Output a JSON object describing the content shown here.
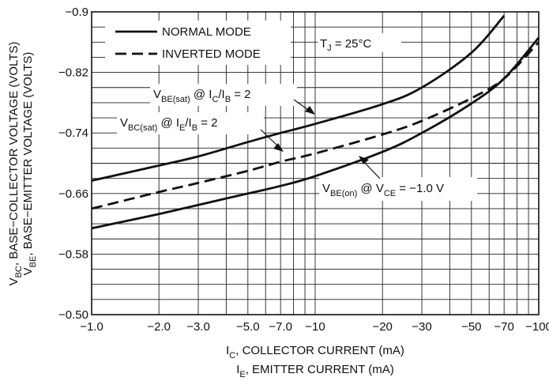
{
  "chart_data": {
    "type": "line",
    "x_scale": "log",
    "x_tick_labels": [
      "−1.0",
      "−2.0",
      "−3.0",
      "−5.0",
      "−7.0",
      "−10",
      "−20",
      "−30",
      "−50",
      "−70",
      "−100"
    ],
    "x_tick_values": [
      1,
      2,
      3,
      5,
      7,
      10,
      20,
      30,
      50,
      70,
      100
    ],
    "xlim": [
      1,
      100
    ],
    "xlabel_line1_main": "I",
    "xlabel_line1_sub": "C",
    "xlabel_line1_rest": ", COLLECTOR CURRENT (mA)",
    "xlabel_line2_main": "I",
    "xlabel_line2_sub": "E",
    "xlabel_line2_rest": ", EMITTER CURRENT (mA)",
    "y_tick_labels": [
      "−0.9",
      "−0.82",
      "−0.74",
      "−0.66",
      "−0.58",
      "−0.50"
    ],
    "y_tick_values": [
      0.9,
      0.82,
      0.74,
      0.66,
      0.58,
      0.5
    ],
    "ylim": [
      0.5,
      0.9
    ],
    "ylabel_line1_main": "V",
    "ylabel_line1_sub": "BC",
    "ylabel_line1_rest": ", BASE−COLLECTOR VOLTAGE (VOLTS)",
    "ylabel_line2_main": "V",
    "ylabel_line2_sub": "BE",
    "ylabel_line2_rest": ", BASE−EMITTER VOLTAGE (VOLTS)",
    "grid": true,
    "legend": [
      {
        "label": "NORMAL MODE",
        "style": "solid"
      },
      {
        "label": "INVERTED MODE",
        "style": "dashed"
      }
    ],
    "condition": {
      "main": "T",
      "sub": "J",
      "rest": " = 25°C"
    },
    "series": [
      {
        "style": "solid",
        "annotation": {
          "p1": "V",
          "p1sub": "BE(sat)",
          "p2": " @ I",
          "p2sub": "C",
          "p3": "/I",
          "p3sub": "B",
          "p4": " = 2"
        },
        "x": [
          1,
          2,
          3,
          5,
          7,
          10,
          20,
          30,
          50,
          70
        ],
        "y": [
          0.677,
          0.697,
          0.709,
          0.728,
          0.74,
          0.752,
          0.778,
          0.8,
          0.846,
          0.895
        ]
      },
      {
        "style": "dashed",
        "annotation": {
          "p1": "V",
          "p1sub": "BC(sat)",
          "p2": " @ I",
          "p2sub": "E",
          "p3": "/I",
          "p3sub": "B",
          "p4": " = 2"
        },
        "x": [
          1,
          2,
          3,
          5,
          7,
          10,
          20,
          30,
          50,
          70,
          100
        ],
        "y": [
          0.64,
          0.662,
          0.674,
          0.69,
          0.702,
          0.713,
          0.738,
          0.756,
          0.786,
          0.812,
          0.86
        ]
      },
      {
        "style": "solid",
        "annotation": {
          "p1": "V",
          "p1sub": "BE(on)",
          "p2": " @ V",
          "p2sub": "CE",
          "p3": " = −1.0 V",
          "p3sub": "",
          "p4": ""
        },
        "x": [
          1,
          2,
          3,
          5,
          7,
          10,
          20,
          30,
          50,
          70,
          100
        ],
        "y": [
          0.614,
          0.633,
          0.645,
          0.66,
          0.67,
          0.683,
          0.715,
          0.74,
          0.779,
          0.812,
          0.866
        ]
      }
    ]
  }
}
